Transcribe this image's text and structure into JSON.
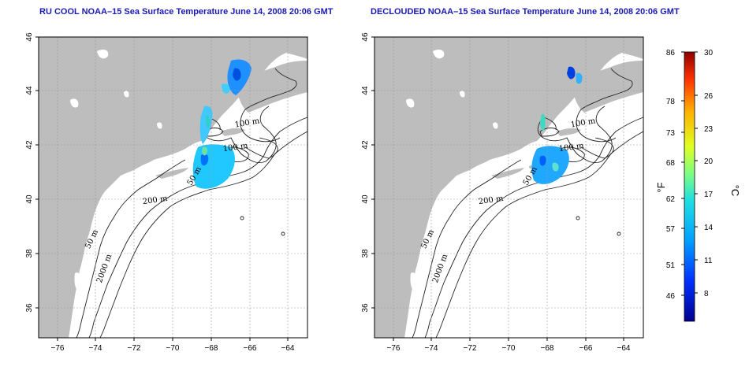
{
  "panels": [
    {
      "id": "left",
      "title": "RU COOL NOAA–15 Sea Surface Temperature June 14, 2008 20:06 GMT",
      "isobaths": [
        "100 m",
        "100 m",
        "50 m",
        "200 m",
        "50 m",
        "2000 m"
      ]
    },
    {
      "id": "right",
      "title": "DECLOUDED NOAA–15 Sea Surface Temperature June 14, 2008 20:06 GMT",
      "isobaths": [
        "100 m",
        "100 m",
        "50 m",
        "200 m",
        "50 m",
        "2000 m"
      ]
    }
  ],
  "axes": {
    "x_ticks": [
      "−76",
      "−74",
      "−72",
      "−70",
      "−68",
      "−66",
      "−64"
    ],
    "y_ticks": [
      "46",
      "44",
      "42",
      "40",
      "38",
      "36"
    ]
  },
  "colorbar": {
    "fahrenheit_ticks": [
      "86",
      "78",
      "73",
      "68",
      "62",
      "57",
      "51",
      "46"
    ],
    "celsius_ticks": [
      "30",
      "26",
      "23",
      "20",
      "17",
      "14",
      "11",
      "8"
    ],
    "fahrenheit_unit": "°F",
    "celsius_unit": "°C",
    "colors": [
      "#00008f",
      "#0030ff",
      "#00a0ff",
      "#20e0e0",
      "#80ff80",
      "#e0ff20",
      "#ffb000",
      "#ff3000",
      "#8f0000"
    ]
  },
  "colors": {
    "land": "#bdbdbd",
    "ocean": "#ffffff",
    "grid": "#9a9a9a",
    "title": "#1a1ab0"
  }
}
